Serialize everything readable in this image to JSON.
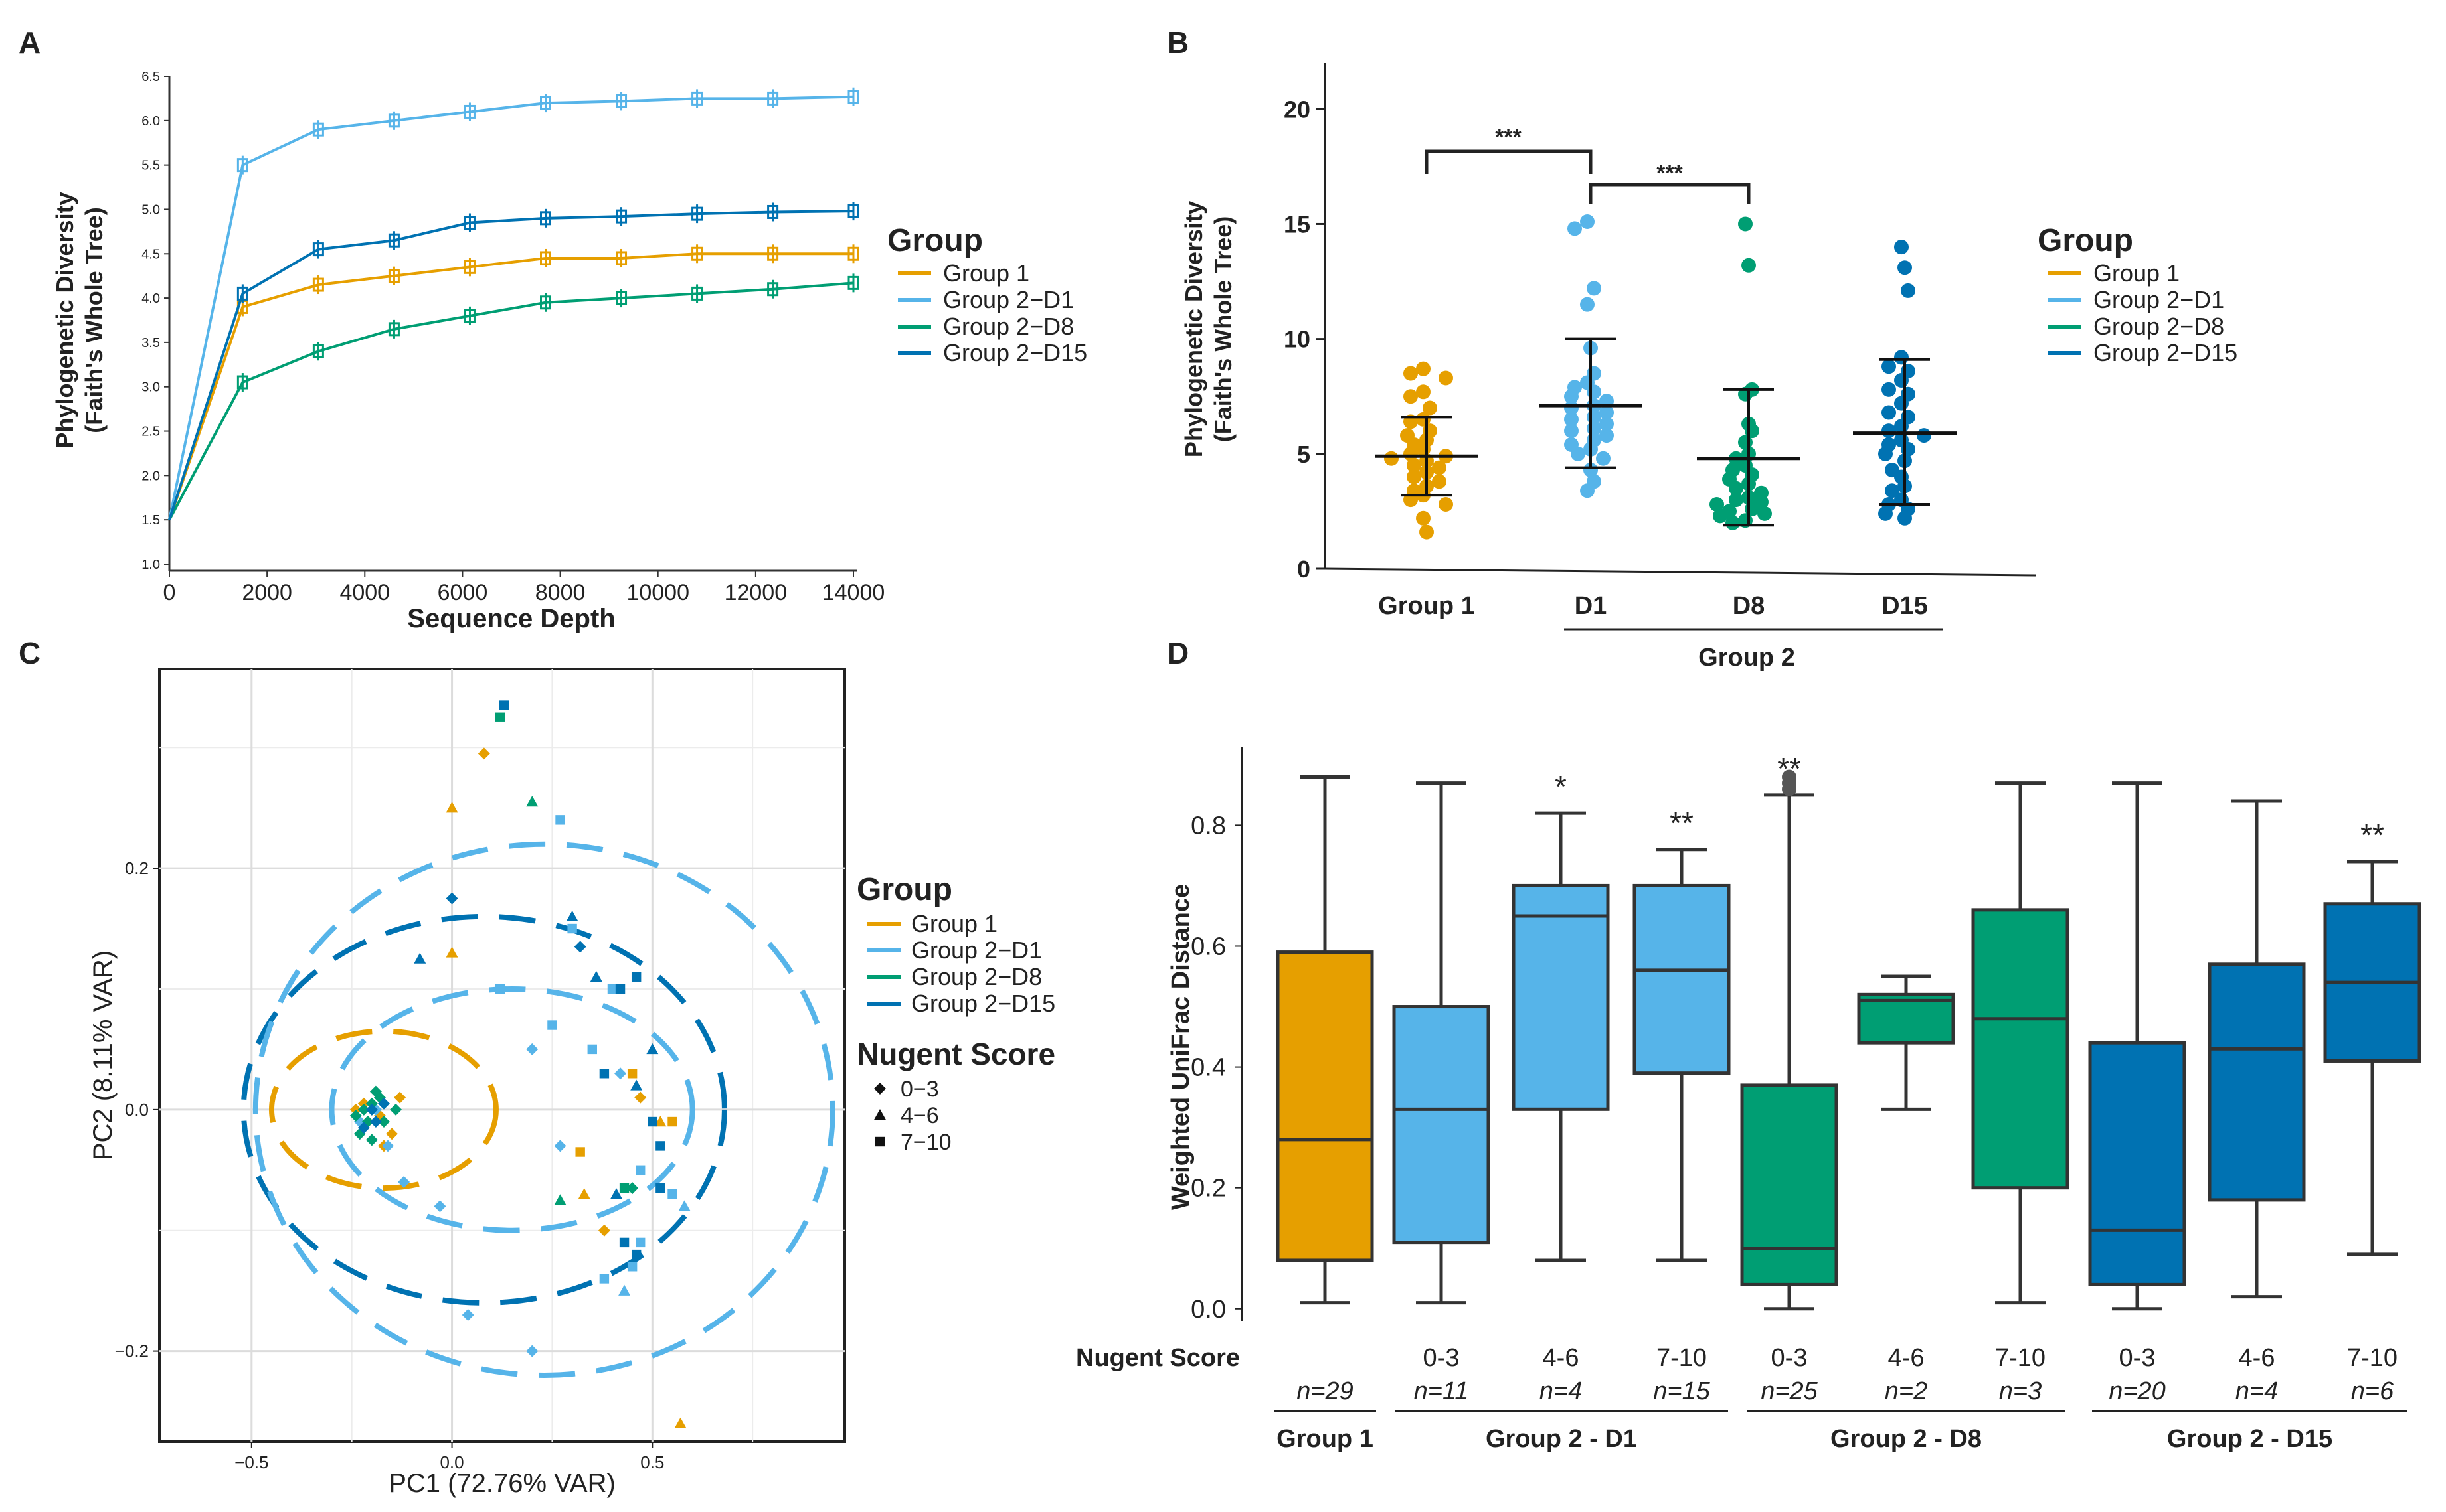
{
  "colors": {
    "g1": "#E69F00",
    "d1": "#56B4E9",
    "d8": "#009E73",
    "d15": "#0072B2",
    "axis": "#222222"
  },
  "chart_data": [
    {
      "panel": "A",
      "type": "line",
      "xlabel": "Sequence Depth",
      "ylabel": [
        "Phylogenetic Diversity",
        "(Faith's Whole Tree)"
      ],
      "xlim": [
        0,
        14000
      ],
      "ylim": [
        1.0,
        6.5
      ],
      "xticks": [
        0,
        2000,
        4000,
        6000,
        8000,
        10000,
        12000,
        14000
      ],
      "yticks": [
        1.0,
        1.5,
        2.0,
        2.5,
        3.0,
        3.5,
        4.0,
        4.5,
        5.0,
        5.5,
        6.0,
        6.5
      ],
      "x": [
        0,
        1500,
        3050,
        4600,
        6150,
        7700,
        9250,
        10800,
        12350,
        14000
      ],
      "legend_title": "Group",
      "series": [
        {
          "name": "Group 1",
          "key": "g1",
          "values": [
            1.5,
            3.9,
            4.15,
            4.25,
            4.35,
            4.45,
            4.45,
            4.5,
            4.5,
            4.5
          ]
        },
        {
          "name": "Group 2−D1",
          "key": "d1",
          "values": [
            1.5,
            5.5,
            5.9,
            6.0,
            6.1,
            6.2,
            6.22,
            6.25,
            6.25,
            6.27
          ]
        },
        {
          "name": "Group 2−D8",
          "key": "d8",
          "values": [
            1.5,
            3.05,
            3.4,
            3.65,
            3.8,
            3.95,
            4.0,
            4.05,
            4.1,
            4.17
          ]
        },
        {
          "name": "Group 2−D15",
          "key": "d15",
          "values": [
            1.5,
            4.05,
            4.55,
            4.65,
            4.85,
            4.9,
            4.92,
            4.95,
            4.97,
            4.98
          ]
        }
      ]
    },
    {
      "panel": "B",
      "type": "scatter",
      "ylabel": [
        "Phylogenetic Diversity",
        "(Faith's Whole Tree)"
      ],
      "ylim": [
        0,
        22
      ],
      "yticks": [
        0,
        5,
        10,
        15,
        20
      ],
      "categories": [
        "Group 1",
        "D1",
        "D8",
        "D15"
      ],
      "group_label": "Group 2",
      "significance": [
        "***",
        "***"
      ],
      "legend_title": "Group",
      "legend": [
        "Group 1",
        "Group 2−D1",
        "Group 2−D8",
        "Group 2−D15"
      ],
      "series": [
        {
          "name": "Group 1",
          "key": "g1",
          "mean": 4.9,
          "sd_low": 3.2,
          "sd_high": 6.6,
          "points": [
            8.7,
            8.5,
            8.3,
            7.7,
            7.5,
            7.0,
            6.5,
            6.4,
            6.0,
            5.8,
            5.6,
            5.4,
            5.2,
            5.0,
            4.9,
            4.8,
            4.7,
            4.5,
            4.4,
            4.2,
            4.0,
            3.8,
            3.6,
            3.4,
            3.2,
            3.0,
            2.8,
            2.2,
            1.6
          ]
        },
        {
          "name": "D1",
          "key": "d1",
          "mean": 7.1,
          "sd_low": 4.4,
          "sd_high": 10.0,
          "points": [
            15.1,
            14.8,
            12.2,
            11.5,
            9.6,
            8.5,
            8.1,
            7.9,
            7.7,
            7.5,
            7.3,
            7.1,
            7.0,
            6.8,
            6.6,
            6.5,
            6.3,
            6.1,
            6.0,
            5.8,
            5.6,
            5.4,
            5.2,
            5.0,
            4.8,
            4.3,
            3.8,
            3.4
          ]
        },
        {
          "name": "D8",
          "key": "d8",
          "mean": 4.8,
          "sd_low": 1.9,
          "sd_high": 7.8,
          "points": [
            15.0,
            13.2,
            7.8,
            7.6,
            6.3,
            6.0,
            5.5,
            5.0,
            4.8,
            4.5,
            4.3,
            4.1,
            3.9,
            3.7,
            3.5,
            3.3,
            3.1,
            3.0,
            2.9,
            2.8,
            2.6,
            2.5,
            2.4,
            2.3,
            2.1,
            2.0
          ]
        },
        {
          "name": "D15",
          "key": "d15",
          "mean": 5.9,
          "sd_low": 2.8,
          "sd_high": 9.1,
          "points": [
            14.0,
            13.1,
            12.1,
            9.2,
            8.8,
            8.6,
            8.2,
            7.8,
            7.6,
            7.2,
            6.8,
            6.6,
            6.2,
            6.0,
            5.8,
            5.6,
            5.4,
            5.2,
            5.0,
            4.7,
            4.3,
            4.0,
            3.6,
            3.4,
            3.0,
            2.8,
            2.6,
            2.4,
            2.2
          ]
        }
      ]
    },
    {
      "panel": "C",
      "type": "scatter",
      "xlabel": "PC1 (72.76% VAR)",
      "ylabel": "PC2 (8.11% VAR)",
      "xlim": [
        -0.73,
        0.98
      ],
      "ylim": [
        -0.275,
        0.365
      ],
      "xticks": [
        -0.5,
        0.0,
        0.5
      ],
      "yticks": [
        -0.2,
        0.0,
        0.2
      ],
      "legend_title": "Group",
      "shape_title": "Nugent Score",
      "shapes": [
        {
          "label": "0−3",
          "shape": "diamond"
        },
        {
          "label": "4−6",
          "shape": "triangle"
        },
        {
          "label": "7−10",
          "shape": "square"
        }
      ],
      "series": [
        {
          "name": "Group 1",
          "key": "g1",
          "points": [
            [
              -0.21,
              -0.01,
              0
            ],
            [
              -0.2,
              0.0,
              0
            ],
            [
              -0.22,
              0.005,
              0
            ],
            [
              -0.15,
              -0.02,
              0
            ],
            [
              -0.24,
              0.0,
              0
            ],
            [
              -0.18,
              -0.005,
              0
            ],
            [
              -0.17,
              -0.03,
              0
            ],
            [
              -0.13,
              0.01,
              0
            ],
            [
              0.08,
              0.295,
              0
            ],
            [
              0.0,
              0.25,
              1
            ],
            [
              0.0,
              0.13,
              1
            ],
            [
              0.33,
              -0.07,
              1
            ],
            [
              0.32,
              -0.035,
              2
            ],
            [
              0.45,
              0.03,
              2
            ],
            [
              0.47,
              0.01,
              0
            ],
            [
              0.52,
              -0.01,
              1
            ],
            [
              0.55,
              -0.01,
              2
            ],
            [
              0.57,
              -0.26,
              1
            ],
            [
              0.38,
              -0.1,
              0
            ]
          ]
        },
        {
          "name": "Group 2−D1",
          "key": "d1",
          "points": [
            [
              -0.23,
              -0.01,
              0
            ],
            [
              -0.19,
              0.0,
              0
            ],
            [
              -0.16,
              -0.03,
              0
            ],
            [
              -0.12,
              -0.06,
              0
            ],
            [
              0.27,
              0.24,
              2
            ],
            [
              0.12,
              0.1,
              2
            ],
            [
              0.25,
              0.07,
              2
            ],
            [
              0.2,
              0.05,
              0
            ],
            [
              0.27,
              -0.03,
              0
            ],
            [
              0.35,
              0.05,
              2
            ],
            [
              0.4,
              0.1,
              2
            ],
            [
              0.42,
              0.03,
              0
            ],
            [
              0.47,
              -0.05,
              2
            ],
            [
              0.55,
              -0.07,
              2
            ],
            [
              0.58,
              -0.08,
              1
            ],
            [
              0.45,
              -0.13,
              2
            ],
            [
              0.43,
              -0.15,
              1
            ],
            [
              0.47,
              -0.11,
              2
            ],
            [
              0.38,
              -0.14,
              2
            ],
            [
              0.2,
              -0.2,
              0
            ],
            [
              0.04,
              -0.17,
              0
            ],
            [
              -0.03,
              -0.08,
              0
            ],
            [
              0.3,
              0.15,
              2
            ]
          ]
        },
        {
          "name": "Group 2−D8",
          "key": "d8",
          "points": [
            [
              -0.24,
              -0.005,
              0
            ],
            [
              -0.22,
              0.0,
              0
            ],
            [
              -0.21,
              -0.01,
              0
            ],
            [
              -0.2,
              0.005,
              0
            ],
            [
              -0.18,
              0.01,
              0
            ],
            [
              -0.17,
              -0.01,
              0
            ],
            [
              -0.14,
              0.0,
              0
            ],
            [
              -0.23,
              -0.02,
              0
            ],
            [
              -0.2,
              -0.025,
              0
            ],
            [
              0.12,
              0.325,
              2
            ],
            [
              0.2,
              0.255,
              1
            ],
            [
              0.27,
              -0.075,
              1
            ],
            [
              0.43,
              -0.065,
              2
            ],
            [
              0.45,
              -0.065,
              0
            ],
            [
              -0.19,
              0.015,
              0
            ]
          ]
        },
        {
          "name": "Group 2−D15",
          "key": "d15",
          "points": [
            [
              -0.2,
              0.0,
              0
            ],
            [
              -0.22,
              -0.015,
              0
            ],
            [
              -0.19,
              -0.01,
              0
            ],
            [
              -0.17,
              0.005,
              0
            ],
            [
              0.13,
              0.335,
              2
            ],
            [
              0.0,
              0.175,
              0
            ],
            [
              -0.08,
              0.125,
              1
            ],
            [
              0.3,
              0.16,
              1
            ],
            [
              0.32,
              0.135,
              0
            ],
            [
              0.36,
              0.11,
              1
            ],
            [
              0.42,
              0.1,
              2
            ],
            [
              0.46,
              0.11,
              2
            ],
            [
              0.5,
              0.05,
              1
            ],
            [
              0.46,
              0.02,
              1
            ],
            [
              0.5,
              -0.01,
              2
            ],
            [
              0.52,
              -0.03,
              2
            ],
            [
              0.52,
              -0.065,
              2
            ],
            [
              0.43,
              -0.11,
              2
            ],
            [
              0.46,
              -0.12,
              2
            ],
            [
              0.38,
              0.03,
              2
            ],
            [
              0.41,
              -0.07,
              1
            ]
          ]
        }
      ],
      "ellipses": [
        {
          "key": "g1",
          "cx": -0.17,
          "cy": 0.0,
          "rx": 0.28,
          "ry": 0.065
        },
        {
          "key": "d1",
          "cx": 0.15,
          "cy": 0.0,
          "rx": 0.45,
          "ry": 0.1
        },
        {
          "key": "d15",
          "cx": 0.08,
          "cy": 0.0,
          "rx": 0.6,
          "ry": 0.16
        },
        {
          "key": "d1",
          "cx": 0.23,
          "cy": 0.0,
          "rx": 0.72,
          "ry": 0.22
        }
      ]
    },
    {
      "panel": "D",
      "type": "box",
      "ylabel": "Weighted UniFrac Distance",
      "ylim": [
        -0.02,
        0.93
      ],
      "yticks": [
        0.0,
        0.2,
        0.4,
        0.6,
        0.8
      ],
      "row_title": "Nugent Score",
      "boxes": [
        {
          "key": "g1",
          "label": "",
          "n": "n=29",
          "min": 0.01,
          "q1": 0.08,
          "median": 0.28,
          "q3": 0.59,
          "max": 0.88,
          "sig": ""
        },
        {
          "key": "d1",
          "label": "0-3",
          "n": "n=11",
          "min": 0.01,
          "q1": 0.11,
          "median": 0.33,
          "q3": 0.5,
          "max": 0.87,
          "sig": ""
        },
        {
          "key": "d1",
          "label": "4-6",
          "n": "n=4",
          "min": 0.08,
          "q1": 0.33,
          "median": 0.65,
          "q3": 0.7,
          "max": 0.82,
          "sig": "*"
        },
        {
          "key": "d1",
          "label": "7-10",
          "n": "n=15",
          "min": 0.08,
          "q1": 0.39,
          "median": 0.56,
          "q3": 0.7,
          "max": 0.76,
          "sig": "**"
        },
        {
          "key": "d8",
          "label": "0-3",
          "n": "n=25",
          "min": 0.0,
          "q1": 0.04,
          "median": 0.1,
          "q3": 0.37,
          "max": 0.85,
          "sig": "**"
        },
        {
          "key": "d8",
          "label": "4-6",
          "n": "n=2",
          "min": 0.33,
          "q1": 0.44,
          "median": 0.51,
          "q3": 0.52,
          "max": 0.55,
          "sig": ""
        },
        {
          "key": "d8",
          "label": "7-10",
          "n": "n=3",
          "min": 0.01,
          "q1": 0.2,
          "median": 0.48,
          "q3": 0.66,
          "max": 0.87,
          "sig": ""
        },
        {
          "key": "d15",
          "label": "0-3",
          "n": "n=20",
          "min": 0.0,
          "q1": 0.04,
          "median": 0.13,
          "q3": 0.44,
          "max": 0.87,
          "sig": ""
        },
        {
          "key": "d15",
          "label": "4-6",
          "n": "n=4",
          "min": 0.02,
          "q1": 0.18,
          "median": 0.43,
          "q3": 0.57,
          "max": 0.84,
          "sig": ""
        },
        {
          "key": "d15",
          "label": "7-10",
          "n": "n=6",
          "min": 0.09,
          "q1": 0.41,
          "median": 0.54,
          "q3": 0.67,
          "max": 0.74,
          "sig": "**"
        }
      ],
      "groups": [
        "Group 1",
        "Group 2 - D1",
        "Group 2 - D8",
        "Group 2 - D15"
      ]
    }
  ]
}
